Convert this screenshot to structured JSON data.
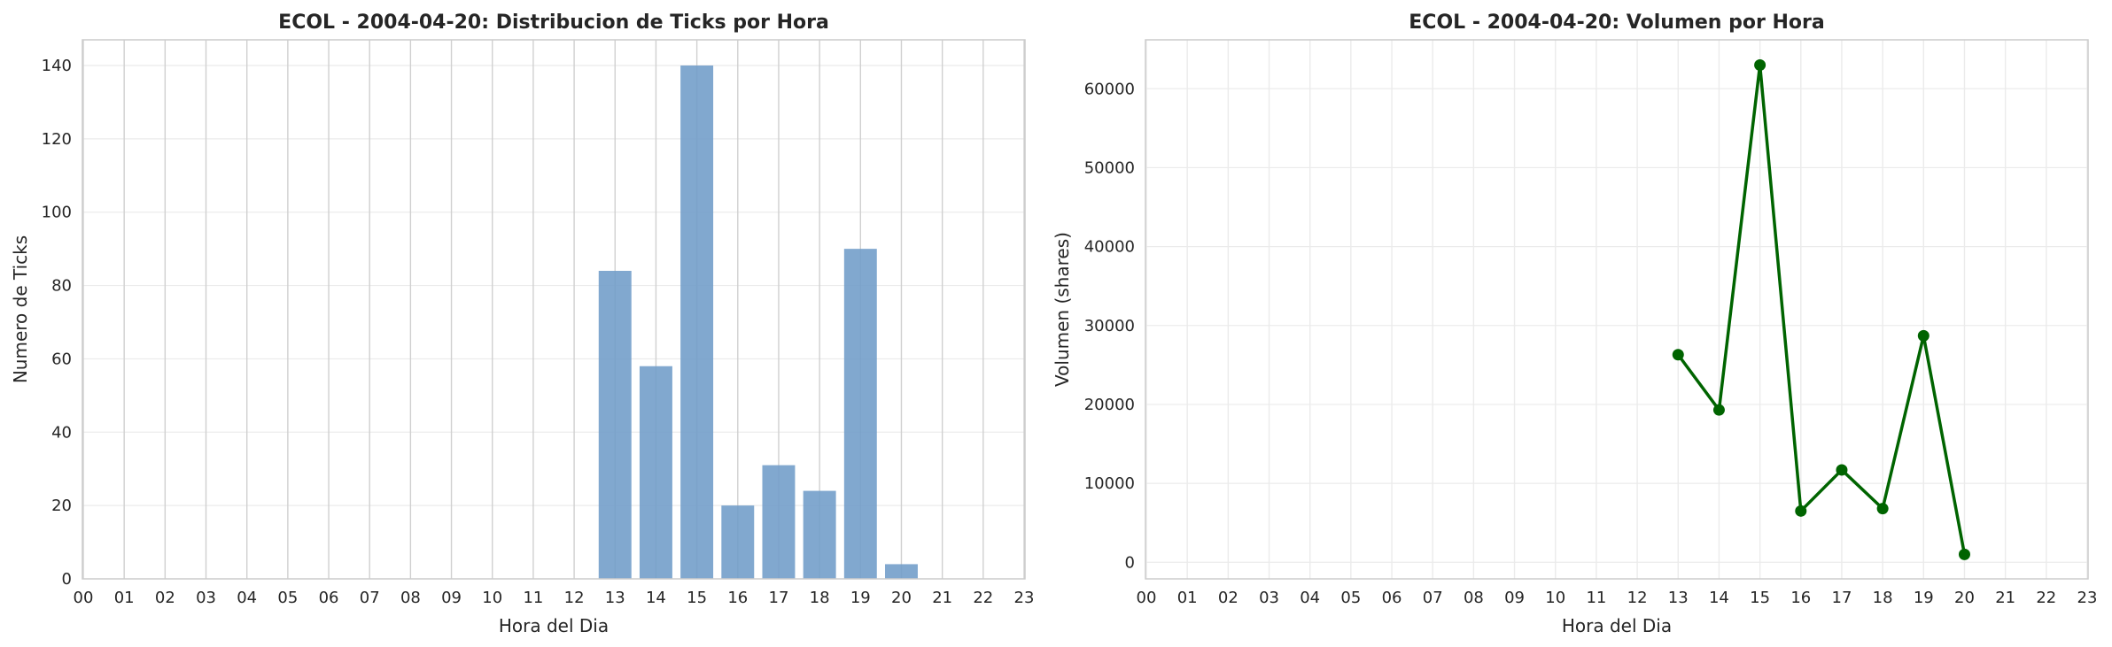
{
  "chart_data": [
    {
      "type": "bar",
      "title": "ECOL - 2004-04-20: Distribucion de Ticks por Hora",
      "xlabel": "Hora del Dia",
      "ylabel": "Numero de Ticks",
      "categories": [
        "00",
        "01",
        "02",
        "03",
        "04",
        "05",
        "06",
        "07",
        "08",
        "09",
        "10",
        "11",
        "12",
        "13",
        "14",
        "15",
        "16",
        "17",
        "18",
        "19",
        "20",
        "21",
        "22",
        "23"
      ],
      "values": [
        0,
        0,
        0,
        0,
        0,
        0,
        0,
        0,
        0,
        0,
        0,
        0,
        0,
        84,
        58,
        140,
        20,
        31,
        24,
        90,
        4,
        0,
        0,
        0
      ],
      "ylim": [
        0,
        147
      ],
      "yticks": [
        0,
        20,
        40,
        60,
        80,
        100,
        120,
        140
      ],
      "grid": true,
      "color": "#6f9cc8"
    },
    {
      "type": "line",
      "title": "ECOL - 2004-04-20: Volumen por Hora",
      "xlabel": "Hora del Dia",
      "ylabel": "Volumen (shares)",
      "categories": [
        "00",
        "01",
        "02",
        "03",
        "04",
        "05",
        "06",
        "07",
        "08",
        "09",
        "10",
        "11",
        "12",
        "13",
        "14",
        "15",
        "16",
        "17",
        "18",
        "19",
        "20",
        "21",
        "22",
        "23"
      ],
      "x": [
        13,
        14,
        15,
        16,
        17,
        18,
        19,
        20
      ],
      "values": [
        26300,
        19300,
        63000,
        6500,
        11700,
        6800,
        28700,
        1000
      ],
      "ylim": [
        -2100,
        66200
      ],
      "yticks": [
        0,
        10000,
        20000,
        30000,
        40000,
        50000,
        60000
      ],
      "grid": true,
      "color": "#006400"
    }
  ]
}
